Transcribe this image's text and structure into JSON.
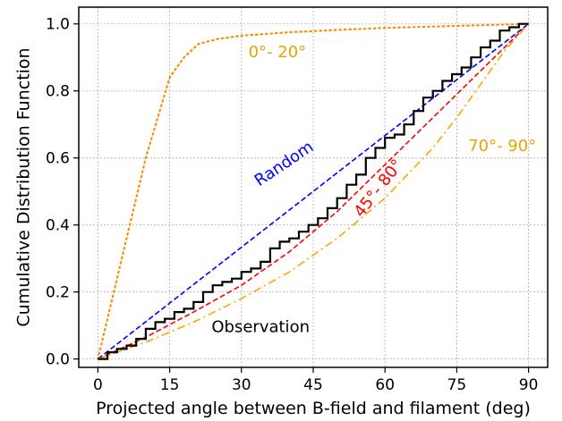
{
  "chart_data": {
    "type": "line",
    "xlabel": "Projected angle between B-field and filament (deg)",
    "ylabel": "Cumulative Distribution Function",
    "xlim": [
      -4,
      94
    ],
    "ylim": [
      -0.025,
      1.05
    ],
    "xticks": [
      0,
      15,
      30,
      45,
      60,
      75,
      90
    ],
    "yticks": [
      0.0,
      0.2,
      0.4,
      0.6,
      0.8,
      1.0
    ],
    "xtick_labels": [
      "0",
      "15",
      "30",
      "45",
      "60",
      "75",
      "90"
    ],
    "ytick_labels": [
      "0.0",
      "0.2",
      "0.4",
      "0.6",
      "0.8",
      "1.0"
    ],
    "grid": true,
    "series": [
      {
        "name": "0°- 20°",
        "color": "#FF8C00",
        "style": "dotted",
        "x": [
          0,
          5,
          10,
          15,
          18,
          21,
          25,
          30,
          40,
          50,
          60,
          75,
          90
        ],
        "y": [
          0.0,
          0.3,
          0.6,
          0.84,
          0.9,
          0.94,
          0.955,
          0.965,
          0.975,
          0.982,
          0.988,
          0.994,
          1.0
        ]
      },
      {
        "name": "Random",
        "color": "#0000FF",
        "style": "dashed",
        "x": [
          0,
          90
        ],
        "y": [
          0.0,
          1.0
        ]
      },
      {
        "name": "45°- 80°",
        "color": "#FF0000",
        "style": "dashed",
        "x": [
          0,
          10,
          20,
          30,
          40,
          50,
          60,
          70,
          80,
          90
        ],
        "y": [
          0.0,
          0.065,
          0.14,
          0.22,
          0.32,
          0.44,
          0.58,
          0.72,
          0.86,
          1.0
        ]
      },
      {
        "name": "70°- 90°",
        "color": "#FFA500",
        "style": "dashdot",
        "x": [
          0,
          10,
          20,
          30,
          40,
          50,
          60,
          70,
          75,
          80,
          85,
          90
        ],
        "y": [
          0.0,
          0.05,
          0.11,
          0.18,
          0.26,
          0.36,
          0.48,
          0.63,
          0.72,
          0.82,
          0.92,
          1.0
        ]
      },
      {
        "name": "Observation",
        "color": "#000000",
        "style": "step",
        "x": [
          0,
          2,
          4,
          6,
          8,
          10,
          12,
          14,
          16,
          18,
          20,
          22,
          24,
          26,
          28,
          30,
          32,
          34,
          36,
          38,
          40,
          42,
          44,
          46,
          48,
          50,
          52,
          54,
          56,
          58,
          60,
          62,
          64,
          66,
          68,
          70,
          72,
          74,
          76,
          78,
          80,
          82,
          84,
          86,
          88,
          90
        ],
        "y": [
          0.0,
          0.02,
          0.03,
          0.04,
          0.06,
          0.09,
          0.11,
          0.12,
          0.14,
          0.15,
          0.17,
          0.2,
          0.22,
          0.23,
          0.24,
          0.26,
          0.27,
          0.29,
          0.33,
          0.35,
          0.36,
          0.38,
          0.4,
          0.42,
          0.45,
          0.48,
          0.52,
          0.55,
          0.6,
          0.63,
          0.66,
          0.67,
          0.7,
          0.74,
          0.78,
          0.8,
          0.83,
          0.85,
          0.87,
          0.9,
          0.93,
          0.95,
          0.98,
          0.99,
          1.0,
          1.0
        ]
      }
    ],
    "annotations": [
      {
        "text": "0°- 20°",
        "color": "#E8A400",
        "x": 37.5,
        "y": 0.9,
        "rotate": 0
      },
      {
        "text": "Random",
        "color": "#0000FF",
        "x": 39.5,
        "y": 0.57,
        "rotate": -34
      },
      {
        "text": "45°- 80°",
        "color": "#FF0000",
        "x": 59.5,
        "y": 0.5,
        "rotate": -52
      },
      {
        "text": "70°- 90°",
        "color": "#E8A400",
        "x": 84.5,
        "y": 0.62,
        "rotate": 0
      },
      {
        "text": "Observation",
        "color": "#000000",
        "x": 34,
        "y": 0.08,
        "rotate": 0
      }
    ]
  }
}
